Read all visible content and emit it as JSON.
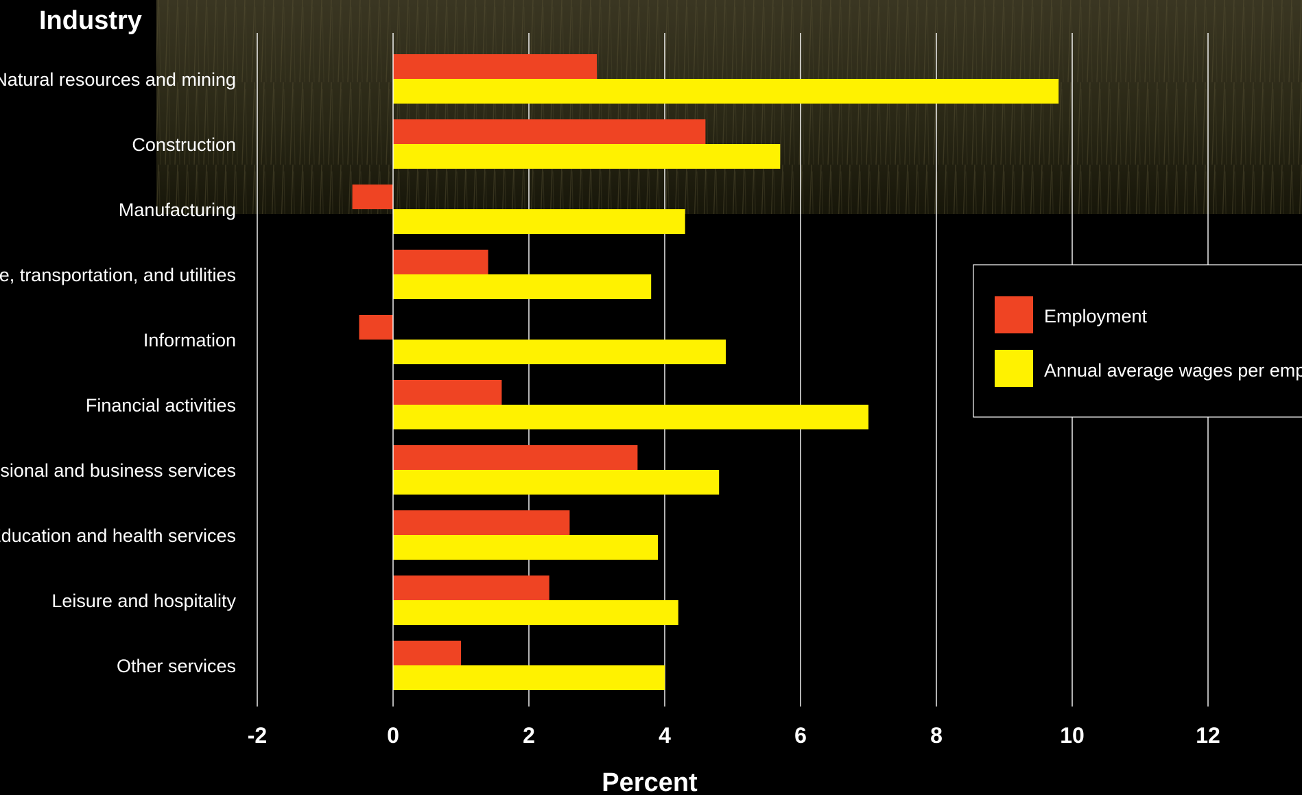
{
  "chart_data": {
    "type": "bar",
    "orientation": "horizontal",
    "title": "",
    "ylabel": "Industry",
    "xlabel": "Percent",
    "xlim": [
      -2,
      13.8
    ],
    "ticks": [
      -2,
      0,
      2,
      4,
      6,
      8,
      10,
      12
    ],
    "tick_labels": [
      "-2",
      "0",
      "2",
      "4",
      "6",
      "8",
      "10",
      "12"
    ],
    "grid": "vertical",
    "legend_position": "right",
    "categories": [
      "Natural resources and mining",
      "Construction",
      "Manufacturing",
      "Trade, transportation, and utilities",
      "Information",
      "Financial activities",
      "Professional and business services",
      "Education and health services",
      "Leisure and hospitality",
      "Other services"
    ],
    "series": [
      {
        "name": "Employment",
        "color": "#ef4423",
        "values": [
          3.0,
          4.6,
          -0.6,
          1.4,
          -0.5,
          1.6,
          3.6,
          2.6,
          2.3,
          1.0
        ]
      },
      {
        "name": "Annual average wages per employee",
        "color": "#fff200",
        "values": [
          9.8,
          5.7,
          4.3,
          3.8,
          4.9,
          7.0,
          4.8,
          3.9,
          4.2,
          4.0
        ]
      }
    ],
    "background_color": "#000000",
    "gridline_color": "#ffffff"
  }
}
